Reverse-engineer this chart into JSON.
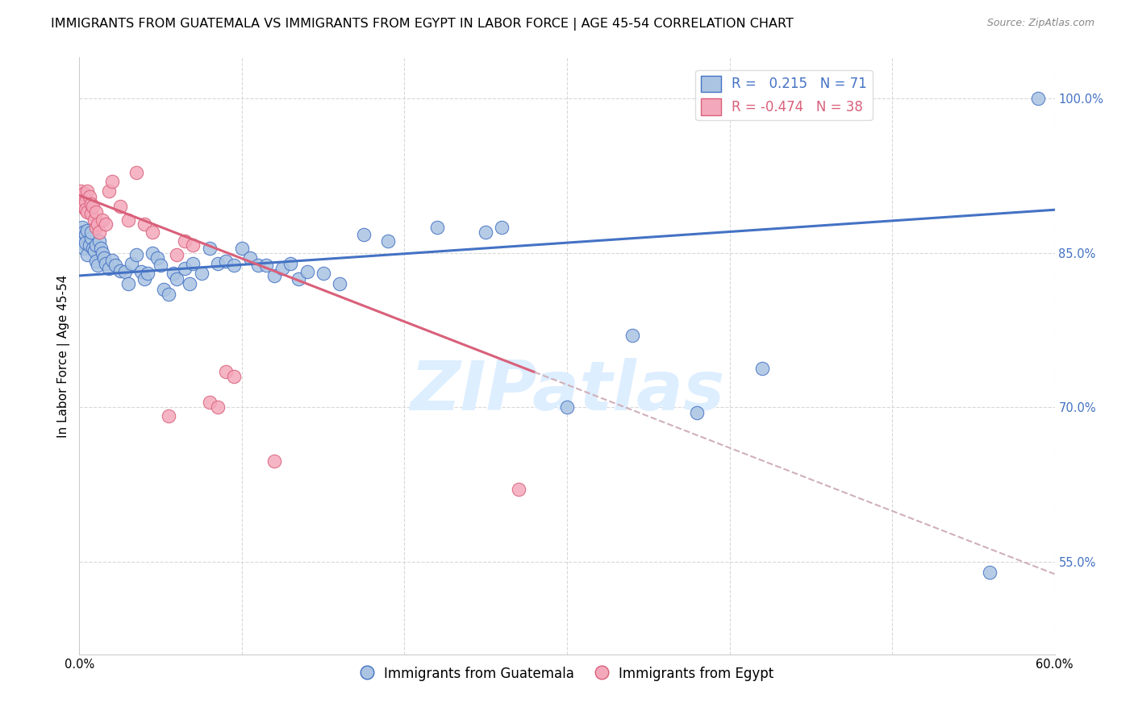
{
  "title": "IMMIGRANTS FROM GUATEMALA VS IMMIGRANTS FROM EGYPT IN LABOR FORCE | AGE 45-54 CORRELATION CHART",
  "source": "Source: ZipAtlas.com",
  "ylabel": "In Labor Force | Age 45-54",
  "xlim": [
    0.0,
    0.6
  ],
  "ylim": [
    0.46,
    1.04
  ],
  "xticks": [
    0.0,
    0.1,
    0.2,
    0.3,
    0.4,
    0.5,
    0.6
  ],
  "xticklabels": [
    "0.0%",
    "",
    "",
    "",
    "",
    "",
    "60.0%"
  ],
  "yticks": [
    0.55,
    0.7,
    0.85,
    1.0
  ],
  "yticklabels": [
    "55.0%",
    "70.0%",
    "85.0%",
    "100.0%"
  ],
  "r_guatemala": 0.215,
  "n_guatemala": 71,
  "r_egypt": -0.474,
  "n_egypt": 38,
  "color_guatemala": "#aac4e2",
  "color_egypt": "#f4a8bb",
  "trendline_guatemala": "#4472c4",
  "trendline_egypt": "#d9607a",
  "watermark_color": "#ddeeff",
  "background_color": "#ffffff",
  "grid_color": "#d8d8d8",
  "title_fontsize": 11.5,
  "axis_label_fontsize": 11,
  "tick_fontsize": 10.5,
  "legend_fontsize": 12,
  "trendline_g_x0": 0.0,
  "trendline_g_y0": 0.828,
  "trendline_g_x1": 0.6,
  "trendline_g_y1": 0.892,
  "trendline_e_x0": 0.0,
  "trendline_e_y0": 0.906,
  "trendline_e_x1": 0.6,
  "trendline_e_y1": 0.538,
  "trendline_e_solid_end": 0.28,
  "guatemala_points": [
    [
      0.001,
      0.87
    ],
    [
      0.001,
      0.86
    ],
    [
      0.002,
      0.865
    ],
    [
      0.002,
      0.875
    ],
    [
      0.003,
      0.87
    ],
    [
      0.003,
      0.855
    ],
    [
      0.004,
      0.868
    ],
    [
      0.004,
      0.86
    ],
    [
      0.005,
      0.872
    ],
    [
      0.005,
      0.848
    ],
    [
      0.006,
      0.858
    ],
    [
      0.007,
      0.865
    ],
    [
      0.007,
      0.87
    ],
    [
      0.008,
      0.855
    ],
    [
      0.009,
      0.852
    ],
    [
      0.01,
      0.858
    ],
    [
      0.01,
      0.842
    ],
    [
      0.011,
      0.838
    ],
    [
      0.012,
      0.862
    ],
    [
      0.013,
      0.855
    ],
    [
      0.014,
      0.85
    ],
    [
      0.015,
      0.845
    ],
    [
      0.016,
      0.84
    ],
    [
      0.018,
      0.835
    ],
    [
      0.02,
      0.843
    ],
    [
      0.022,
      0.838
    ],
    [
      0.025,
      0.833
    ],
    [
      0.028,
      0.832
    ],
    [
      0.03,
      0.82
    ],
    [
      0.032,
      0.84
    ],
    [
      0.035,
      0.848
    ],
    [
      0.038,
      0.832
    ],
    [
      0.04,
      0.825
    ],
    [
      0.042,
      0.83
    ],
    [
      0.045,
      0.85
    ],
    [
      0.048,
      0.845
    ],
    [
      0.05,
      0.838
    ],
    [
      0.052,
      0.815
    ],
    [
      0.055,
      0.81
    ],
    [
      0.058,
      0.83
    ],
    [
      0.06,
      0.825
    ],
    [
      0.065,
      0.835
    ],
    [
      0.068,
      0.82
    ],
    [
      0.07,
      0.84
    ],
    [
      0.075,
      0.83
    ],
    [
      0.08,
      0.855
    ],
    [
      0.085,
      0.84
    ],
    [
      0.09,
      0.842
    ],
    [
      0.095,
      0.838
    ],
    [
      0.1,
      0.855
    ],
    [
      0.105,
      0.845
    ],
    [
      0.11,
      0.838
    ],
    [
      0.115,
      0.838
    ],
    [
      0.12,
      0.828
    ],
    [
      0.125,
      0.835
    ],
    [
      0.13,
      0.84
    ],
    [
      0.135,
      0.825
    ],
    [
      0.14,
      0.832
    ],
    [
      0.15,
      0.83
    ],
    [
      0.16,
      0.82
    ],
    [
      0.175,
      0.868
    ],
    [
      0.19,
      0.862
    ],
    [
      0.22,
      0.875
    ],
    [
      0.25,
      0.87
    ],
    [
      0.26,
      0.875
    ],
    [
      0.3,
      0.7
    ],
    [
      0.34,
      0.77
    ],
    [
      0.38,
      0.695
    ],
    [
      0.42,
      0.738
    ],
    [
      0.56,
      0.54
    ],
    [
      0.59,
      1.0
    ]
  ],
  "egypt_points": [
    [
      0.001,
      0.91
    ],
    [
      0.001,
      0.9
    ],
    [
      0.002,
      0.905
    ],
    [
      0.002,
      0.895
    ],
    [
      0.003,
      0.908
    ],
    [
      0.003,
      0.895
    ],
    [
      0.004,
      0.9
    ],
    [
      0.004,
      0.892
    ],
    [
      0.005,
      0.91
    ],
    [
      0.005,
      0.89
    ],
    [
      0.006,
      0.905
    ],
    [
      0.007,
      0.898
    ],
    [
      0.007,
      0.888
    ],
    [
      0.008,
      0.895
    ],
    [
      0.009,
      0.882
    ],
    [
      0.01,
      0.89
    ],
    [
      0.01,
      0.875
    ],
    [
      0.011,
      0.878
    ],
    [
      0.012,
      0.87
    ],
    [
      0.014,
      0.882
    ],
    [
      0.016,
      0.878
    ],
    [
      0.018,
      0.91
    ],
    [
      0.02,
      0.92
    ],
    [
      0.025,
      0.895
    ],
    [
      0.03,
      0.882
    ],
    [
      0.035,
      0.928
    ],
    [
      0.04,
      0.878
    ],
    [
      0.045,
      0.87
    ],
    [
      0.055,
      0.692
    ],
    [
      0.06,
      0.848
    ],
    [
      0.065,
      0.862
    ],
    [
      0.07,
      0.858
    ],
    [
      0.08,
      0.705
    ],
    [
      0.085,
      0.7
    ],
    [
      0.09,
      0.735
    ],
    [
      0.095,
      0.73
    ],
    [
      0.12,
      0.648
    ],
    [
      0.27,
      0.62
    ]
  ]
}
